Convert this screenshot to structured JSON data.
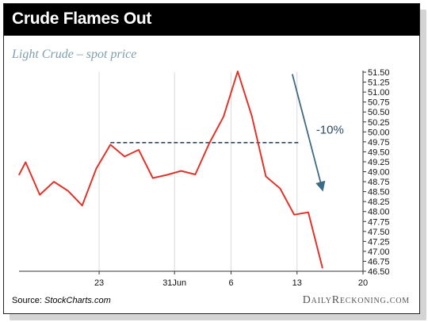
{
  "header": {
    "title": "Crude Flames Out",
    "subtitle": "Light Crude – spot price"
  },
  "footer": {
    "source_label": "Source:",
    "source_name": "StockCharts.com",
    "brand": "DailyReckoning.com"
  },
  "colors": {
    "title_background": "#000000",
    "title_text": "#ffffff",
    "subtitle": "#7f9fae",
    "line": "#e0332a",
    "reference_line": "#2e4a62",
    "arrow": "#3d6a85",
    "axis": "#333333",
    "grid": "#d9d9d9"
  },
  "chart_data": {
    "type": "line",
    "title": "Crude Flames Out",
    "subtitle": "Light Crude – spot price",
    "xlabel": "",
    "ylabel": "",
    "y_axis_side": "right",
    "ylim": [
      46.5,
      51.5
    ],
    "yticks": [
      "51.50",
      "51.25",
      "51.00",
      "50.75",
      "50.50",
      "50.25",
      "50.00",
      "49.75",
      "49.50",
      "49.25",
      "49.00",
      "48.75",
      "48.50",
      "48.25",
      "48.00",
      "47.75",
      "47.50",
      "47.25",
      "47.00",
      "46.75",
      "46.50"
    ],
    "xticks": [
      {
        "label": "23",
        "day": 23
      },
      {
        "label": "31Jun",
        "day": 31
      },
      {
        "label": "6",
        "day": 37
      },
      {
        "label": "13",
        "day": 44
      },
      {
        "label": "20",
        "day": 51
      }
    ],
    "xlim": [
      14.5,
      51
    ],
    "grid": true,
    "series": [
      {
        "values": [
          {
            "day": 14.5,
            "value": 48.92
          },
          {
            "day": 15.2,
            "value": 49.24
          },
          {
            "day": 16.7,
            "value": 48.42
          },
          {
            "day": 18.2,
            "value": 48.75
          },
          {
            "day": 19.7,
            "value": 48.52
          },
          {
            "day": 21.2,
            "value": 48.15
          },
          {
            "day": 22.7,
            "value": 49.08
          },
          {
            "day": 24.2,
            "value": 49.68
          },
          {
            "day": 25.7,
            "value": 49.38
          },
          {
            "day": 27.2,
            "value": 49.55
          },
          {
            "day": 28.7,
            "value": 48.84
          },
          {
            "day": 30.2,
            "value": 48.92
          },
          {
            "day": 31.7,
            "value": 49.02
          },
          {
            "day": 33.2,
            "value": 48.93
          },
          {
            "day": 34.7,
            "value": 49.72
          },
          {
            "day": 36.2,
            "value": 50.38
          },
          {
            "day": 37.7,
            "value": 51.52
          },
          {
            "day": 39.2,
            "value": 50.4
          },
          {
            "day": 40.7,
            "value": 48.88
          },
          {
            "day": 42.2,
            "value": 48.58
          },
          {
            "day": 43.7,
            "value": 47.92
          },
          {
            "day": 45.2,
            "value": 47.98
          },
          {
            "day": 46.7,
            "value": 46.58
          }
        ]
      }
    ],
    "reference_line": {
      "value": 49.73,
      "from_day": 24.2,
      "to_day": 44.2,
      "style": "dashed"
    },
    "annotations": [
      {
        "text": "-10%",
        "type": "arrow",
        "from": {
          "day": 43.5,
          "value": 51.45
        },
        "to": {
          "day": 46.7,
          "value": 48.55
        }
      }
    ]
  }
}
